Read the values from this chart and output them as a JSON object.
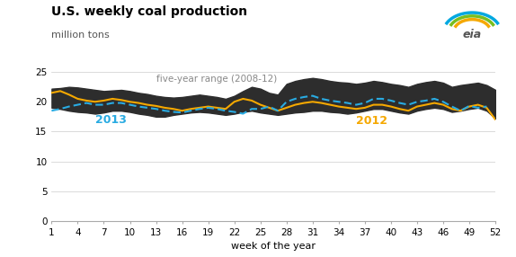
{
  "title": "U.S. weekly coal production",
  "ylabel": "million tons",
  "xlabel": "week of the year",
  "xlim": [
    1,
    52
  ],
  "ylim": [
    0,
    25
  ],
  "yticks": [
    0,
    5,
    10,
    15,
    20,
    25
  ],
  "xticks": [
    1,
    4,
    7,
    10,
    13,
    16,
    19,
    22,
    25,
    28,
    31,
    34,
    37,
    40,
    43,
    46,
    49,
    52
  ],
  "five_year_label": "five-year range (2008-12)",
  "five_year_color": "#888888",
  "range_fill_color": "#2d2d2d",
  "line_2013_color": "#29ABE2",
  "line_2012_color": "#F5A800",
  "annotation_2013": "2013",
  "annotation_2012": "2012",
  "five_year_upper": [
    22.2,
    22.3,
    22.5,
    22.4,
    22.2,
    22.0,
    21.8,
    21.9,
    22.0,
    21.8,
    21.5,
    21.3,
    21.0,
    20.8,
    20.7,
    20.8,
    21.0,
    21.2,
    21.0,
    20.8,
    20.5,
    21.0,
    21.8,
    22.5,
    22.2,
    21.5,
    21.2,
    23.0,
    23.5,
    23.8,
    24.0,
    23.8,
    23.5,
    23.3,
    23.2,
    23.0,
    23.2,
    23.5,
    23.3,
    23.0,
    22.8,
    22.5,
    23.0,
    23.3,
    23.5,
    23.2,
    22.5,
    22.8,
    23.0,
    23.2,
    22.8,
    22.0
  ],
  "five_year_lower": [
    19.0,
    18.8,
    18.5,
    18.3,
    18.2,
    18.0,
    18.2,
    18.5,
    18.5,
    18.3,
    18.0,
    17.8,
    17.5,
    17.5,
    17.8,
    18.0,
    18.2,
    18.3,
    18.2,
    18.0,
    17.8,
    18.0,
    18.3,
    18.5,
    18.2,
    18.0,
    17.8,
    18.0,
    18.2,
    18.3,
    18.5,
    18.5,
    18.3,
    18.2,
    18.0,
    18.2,
    18.5,
    18.8,
    18.8,
    18.5,
    18.2,
    18.0,
    18.5,
    18.8,
    19.0,
    18.8,
    18.3,
    18.5,
    18.8,
    19.0,
    18.5,
    17.2
  ],
  "data_2013": [
    18.5,
    18.8,
    19.2,
    19.5,
    19.8,
    19.5,
    19.5,
    19.8,
    19.8,
    19.5,
    19.2,
    19.0,
    18.8,
    18.5,
    18.3,
    18.2,
    18.5,
    18.8,
    19.0,
    18.8,
    18.5,
    18.3,
    18.0,
    18.8,
    18.8,
    19.2,
    18.5,
    20.0,
    20.5,
    20.8,
    21.0,
    20.5,
    20.2,
    20.0,
    19.8,
    19.5,
    19.8,
    20.5,
    20.5,
    20.2,
    19.8,
    19.5,
    20.0,
    20.2,
    20.5,
    20.0,
    19.2,
    18.5,
    19.3,
    19.0,
    19.2,
    null
  ],
  "data_2012": [
    21.5,
    21.8,
    21.2,
    20.5,
    20.2,
    20.0,
    20.2,
    20.5,
    20.3,
    20.0,
    19.8,
    19.5,
    19.3,
    19.0,
    18.8,
    18.5,
    18.8,
    19.0,
    19.2,
    19.0,
    18.8,
    20.0,
    20.5,
    20.2,
    19.5,
    19.0,
    18.5,
    19.0,
    19.5,
    19.8,
    20.0,
    19.8,
    19.5,
    19.2,
    19.0,
    18.8,
    19.0,
    19.5,
    19.5,
    19.2,
    18.8,
    18.5,
    19.2,
    19.5,
    19.8,
    19.5,
    18.8,
    18.5,
    19.2,
    19.5,
    19.0,
    17.0
  ]
}
